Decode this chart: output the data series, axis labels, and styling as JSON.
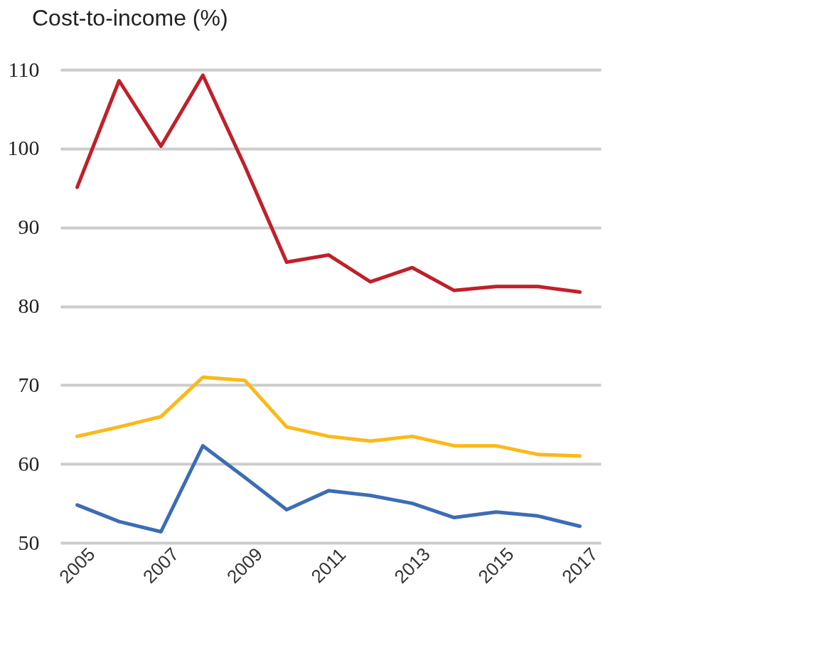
{
  "chart_data": {
    "type": "line",
    "title": "Cost-to-income (%)",
    "x": [
      2005,
      2006,
      2007,
      2008,
      2009,
      2010,
      2011,
      2012,
      2013,
      2014,
      2015,
      2016,
      2017
    ],
    "series": [
      {
        "color": "#c0202a",
        "values": [
          95.1,
          108.6,
          100.3,
          109.3,
          97.8,
          85.6,
          86.5,
          83.1,
          84.9,
          82.0,
          82.5,
          82.5,
          81.8
        ]
      },
      {
        "color": "#fbb919",
        "values": [
          63.5,
          64.7,
          66.0,
          71.0,
          70.6,
          64.7,
          63.5,
          62.9,
          63.5,
          62.3,
          62.3,
          61.2,
          61.0
        ]
      },
      {
        "color": "#3c6db4",
        "values": [
          54.8,
          52.7,
          51.4,
          62.3,
          58.3,
          54.2,
          56.6,
          56.0,
          55.0,
          53.2,
          53.9,
          53.4,
          52.1
        ]
      }
    ],
    "xlim": [
      2004.6,
      2017.5
    ],
    "xticks": [
      2005,
      2007,
      2009,
      2011,
      2013,
      2015,
      2017
    ],
    "ylim": [
      50,
      110
    ],
    "yticks": [
      50,
      60,
      70,
      80,
      90,
      100,
      110
    ],
    "grid": "y",
    "marker": "none",
    "line_style": "solid"
  }
}
